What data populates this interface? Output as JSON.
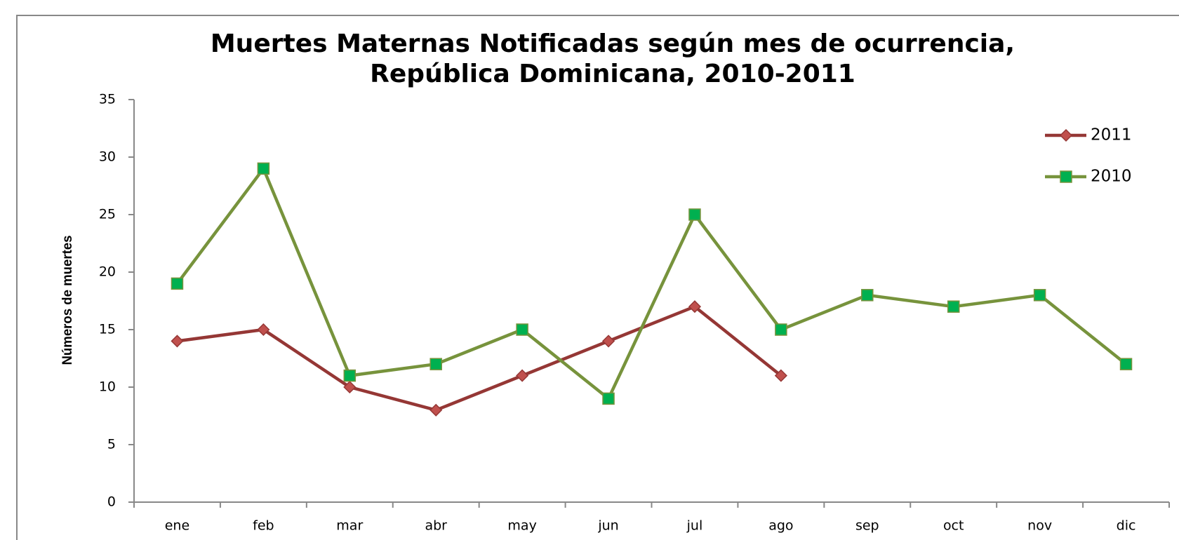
{
  "chart_data": {
    "type": "line",
    "title": "Muertes Maternas Notificadas según mes de ocurrencia,",
    "subtitle": "República Dominicana, 2010-2011",
    "y_label": "Números de muertes",
    "categories": [
      "ene",
      "feb",
      "mar",
      "abr",
      "may",
      "jun",
      "jul",
      "ago",
      "sep",
      "oct",
      "nov",
      "dic"
    ],
    "series": [
      {
        "name": "2011",
        "color": "#953735",
        "marker_color": "#c0504d",
        "marker": "diamond",
        "values": [
          14,
          15,
          10,
          8,
          11,
          14,
          17,
          11,
          null,
          null,
          null,
          null
        ]
      },
      {
        "name": "2010",
        "color": "#77933c",
        "marker_color": "#00b050",
        "marker": "square",
        "values": [
          19,
          29,
          11,
          12,
          15,
          9,
          25,
          15,
          18,
          17,
          18,
          12
        ]
      }
    ],
    "ylim": [
      0,
      35
    ],
    "yticks": [
      0,
      5,
      10,
      15,
      20,
      25,
      30,
      35
    ],
    "grid": false,
    "legend": "upper right"
  }
}
